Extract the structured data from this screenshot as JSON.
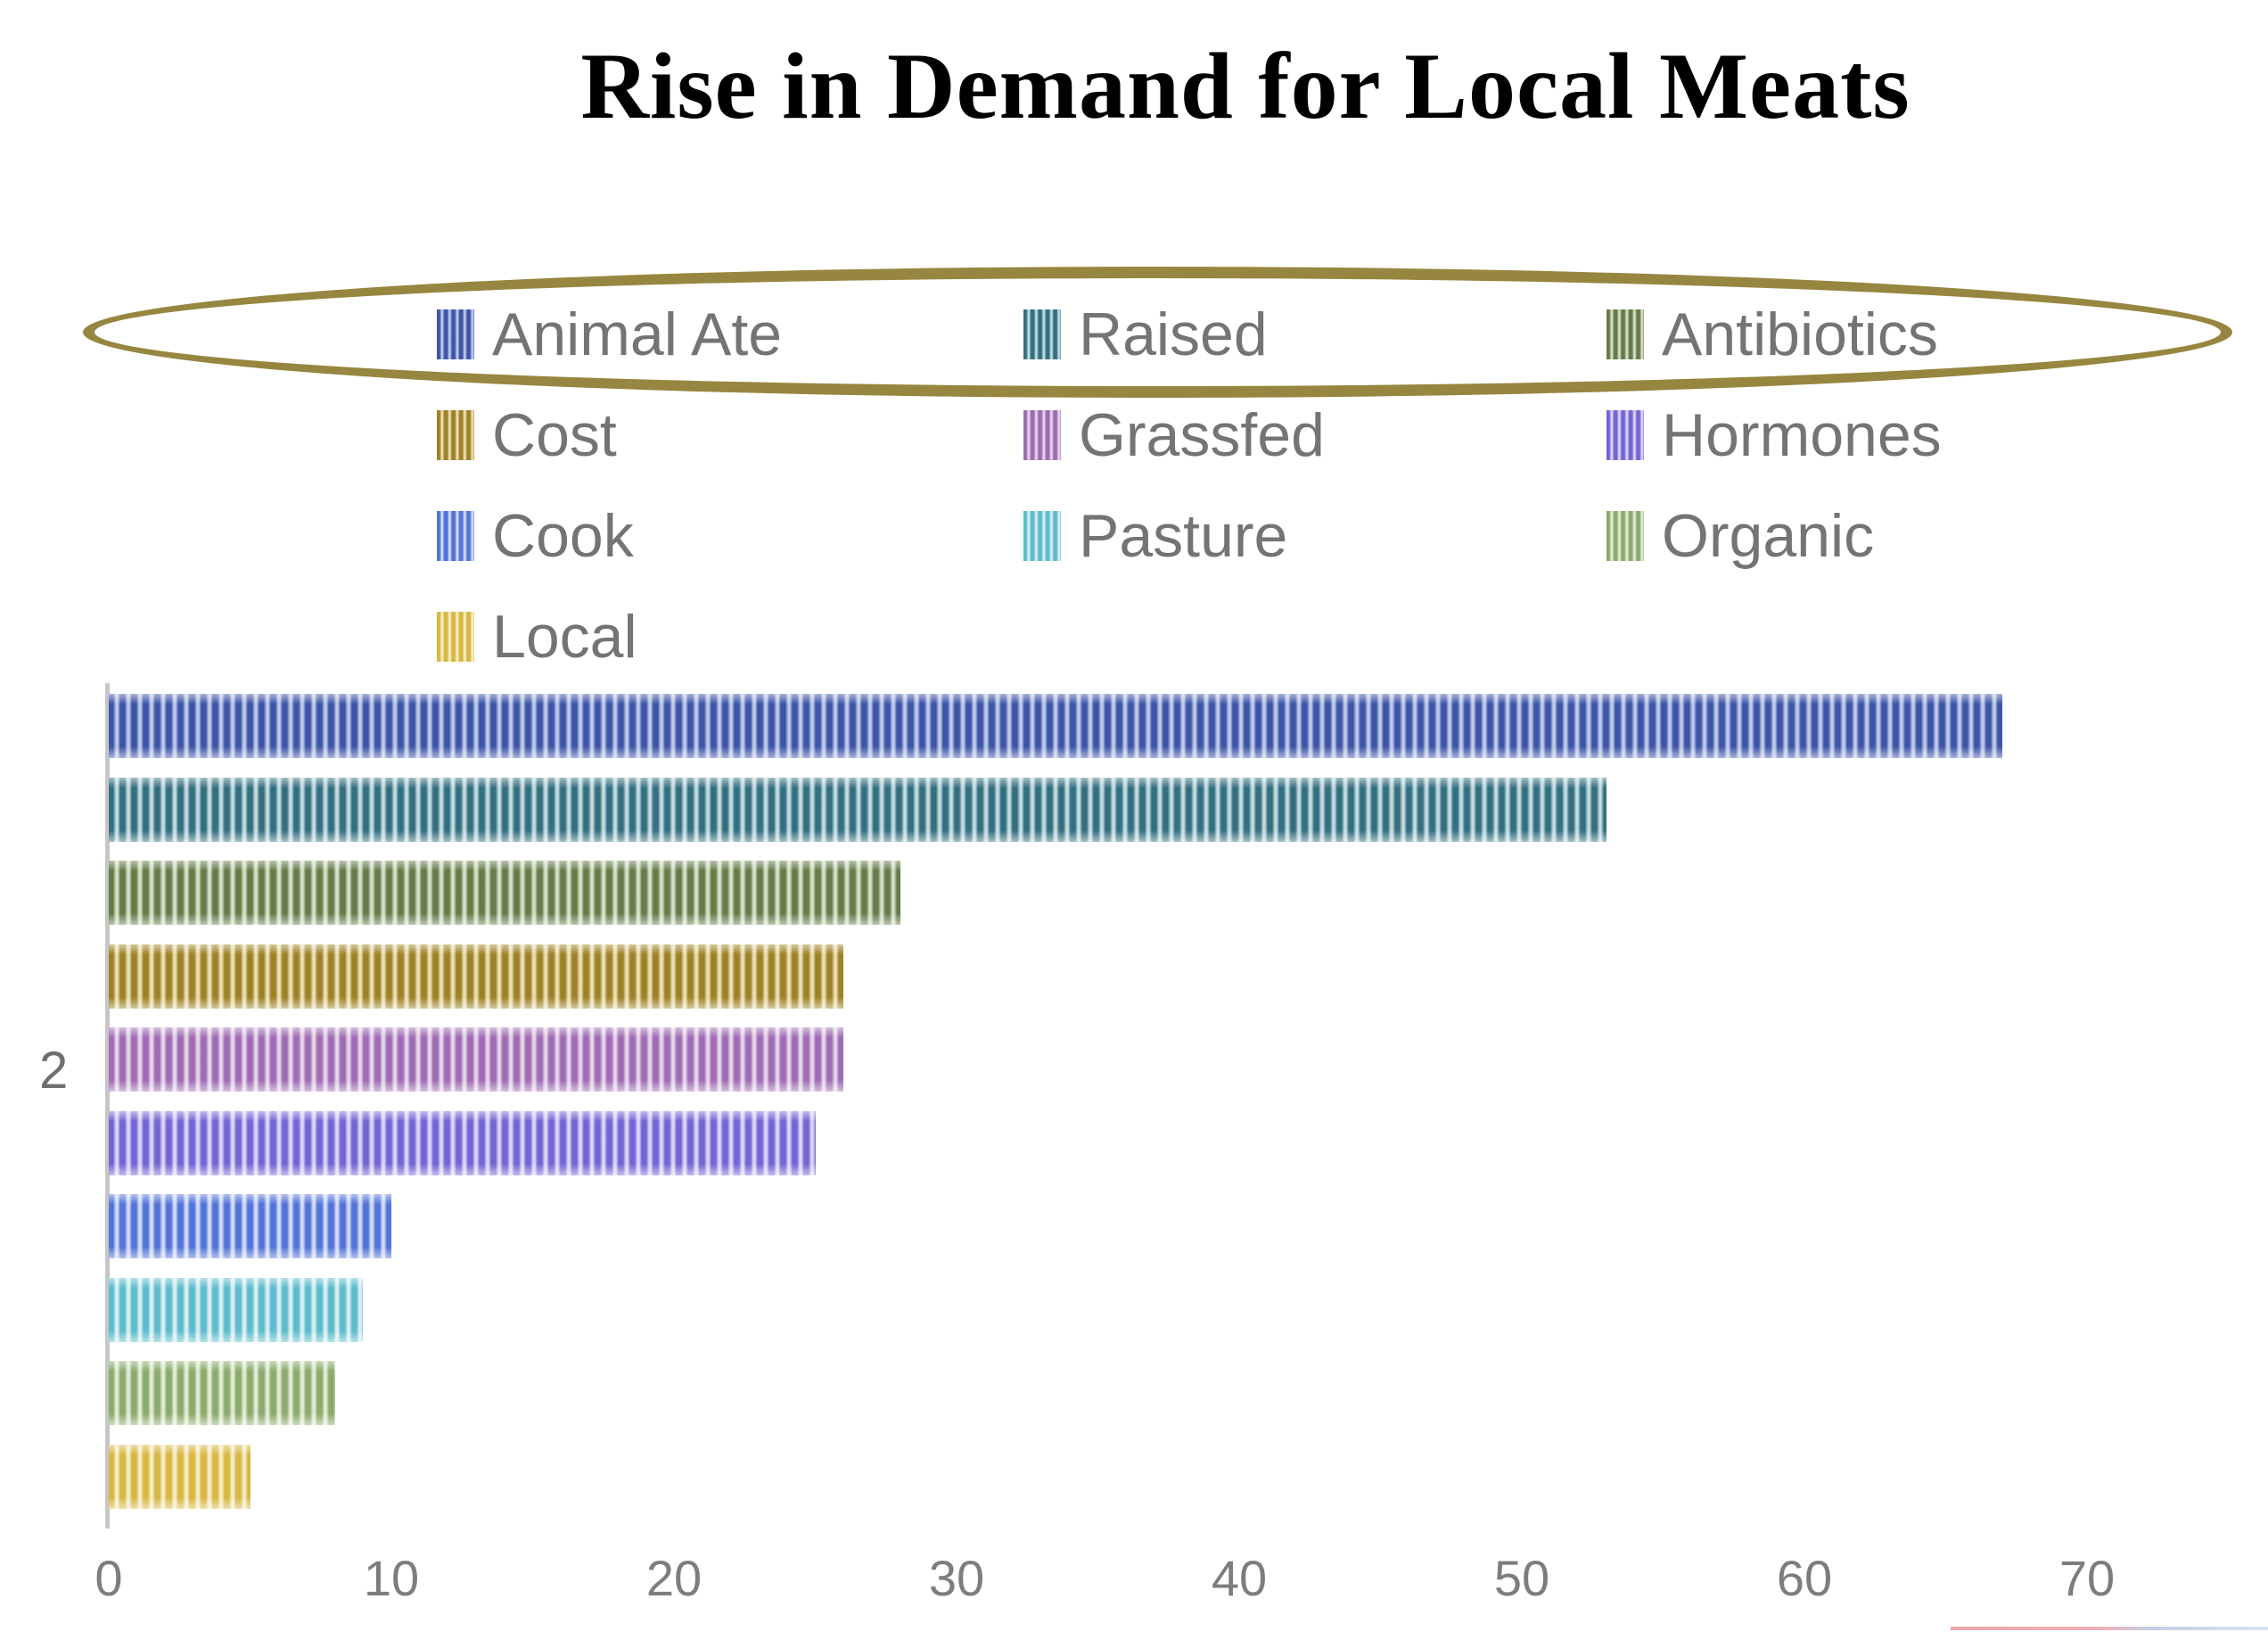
{
  "title": "Rise in Demand for Local Meats",
  "chart_data": {
    "type": "bar",
    "orientation": "horizontal",
    "title": "Rise in Demand for Local Meats",
    "xlabel": "",
    "ylabel": "",
    "xlim": [
      0,
      75
    ],
    "x_ticks": [
      "0",
      "10",
      "20",
      "30",
      "40",
      "50",
      "60",
      "70"
    ],
    "x_tick_values": [
      0,
      10,
      20,
      30,
      40,
      50,
      60,
      70
    ],
    "y_axis_tick_label": "2",
    "grid": false,
    "legend_position": "top",
    "series": [
      {
        "name": "Animal Ate",
        "value": 67,
        "color_dark": "#3D55A8",
        "color_light": "#BFC9E8"
      },
      {
        "name": "Raised",
        "value": 53,
        "color_dark": "#346F80",
        "color_light": "#C3DCE1"
      },
      {
        "name": "Antibiotics",
        "value": 28,
        "color_dark": "#657C49",
        "color_light": "#D6DFC8"
      },
      {
        "name": "Cost",
        "value": 26,
        "color_dark": "#9D8126",
        "color_light": "#EBDFB4"
      },
      {
        "name": "Grassfed",
        "value": 26,
        "color_dark": "#9F6BB3",
        "color_light": "#E6D6EB"
      },
      {
        "name": "Hormones",
        "value": 25,
        "color_dark": "#7365D5",
        "color_light": "#DBD6F6"
      },
      {
        "name": "Cook",
        "value": 10,
        "color_dark": "#5273D8",
        "color_light": "#D2DBF8"
      },
      {
        "name": "Pasture",
        "value": 9,
        "color_dark": "#5CBCCC",
        "color_light": "#DBEFF3"
      },
      {
        "name": "Organic",
        "value": 8,
        "color_dark": "#8BAB6D",
        "color_light": "#E3ECD6"
      },
      {
        "name": "Local",
        "value": 5,
        "color_dark": "#D8B742",
        "color_light": "#F6EDC9"
      }
    ]
  },
  "annotations": {
    "ellipse_color": "#97863F",
    "ellipse_note": "hand-drawn oval highlighting first legend row"
  },
  "axis_colors": {
    "axis_line": "#C6C6C6",
    "tick_text": "#7D7D7D",
    "legend_text": "#747474"
  }
}
